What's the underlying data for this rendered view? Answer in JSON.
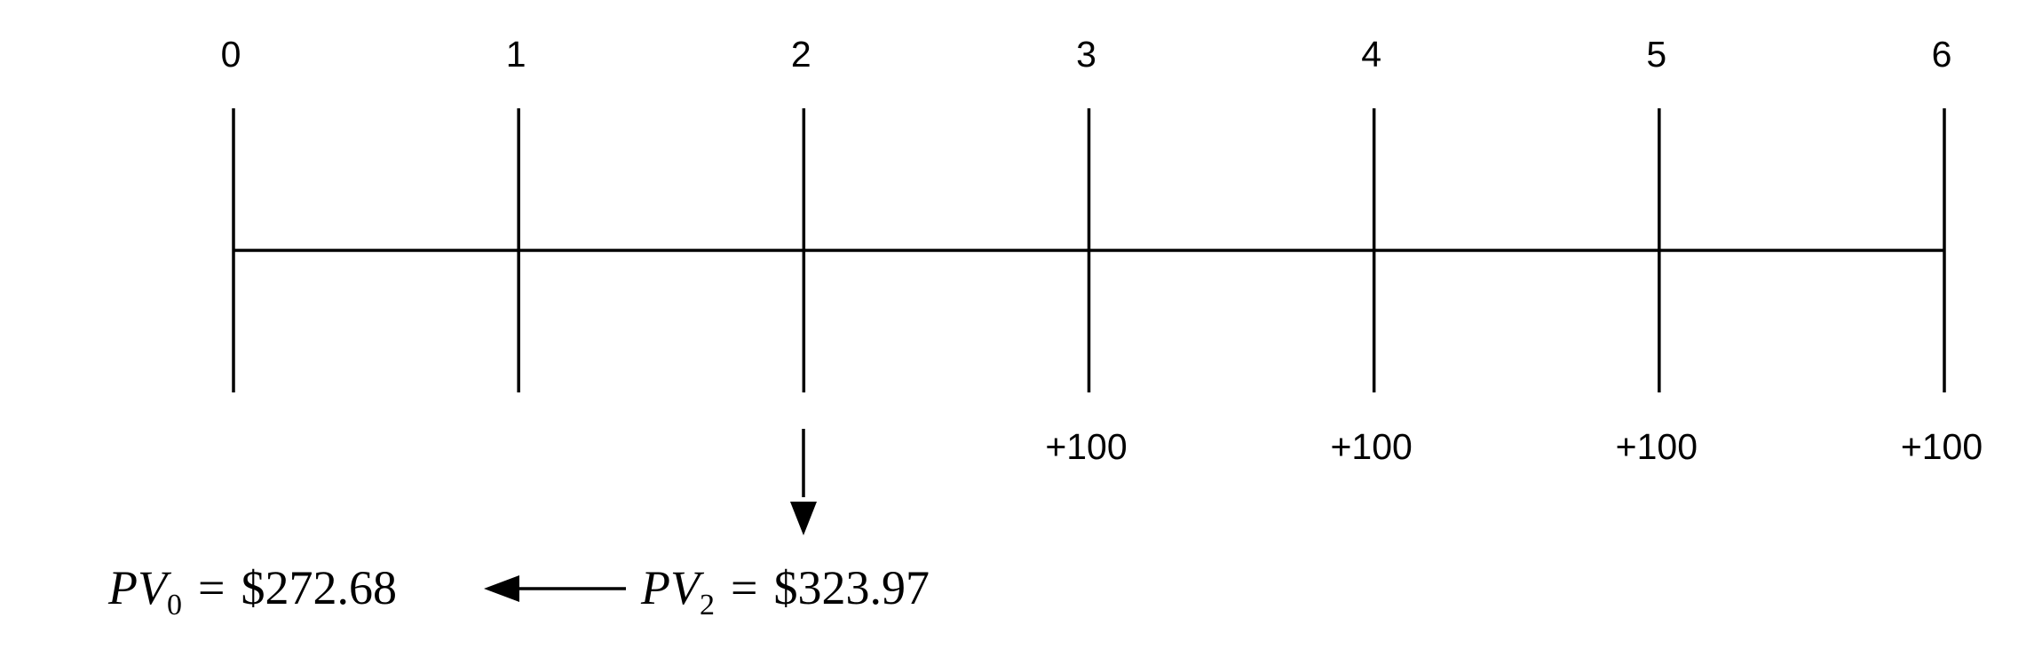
{
  "timeline": {
    "periods": [
      "0",
      "1",
      "2",
      "3",
      "4",
      "5",
      "6"
    ],
    "cash_flows": [
      "",
      "",
      "",
      "+100",
      "+100",
      "+100",
      "+100"
    ],
    "discount_point_period": "2"
  },
  "present_values": {
    "pv0": {
      "symbol": "PV",
      "subscript": "0",
      "equals": "=",
      "value": "$272.68"
    },
    "pv2": {
      "symbol": "PV",
      "subscript": "2",
      "equals": "=",
      "value": "$323.97"
    }
  },
  "colors": {
    "stroke": "#000000",
    "text": "#000000",
    "background": "#ffffff"
  }
}
